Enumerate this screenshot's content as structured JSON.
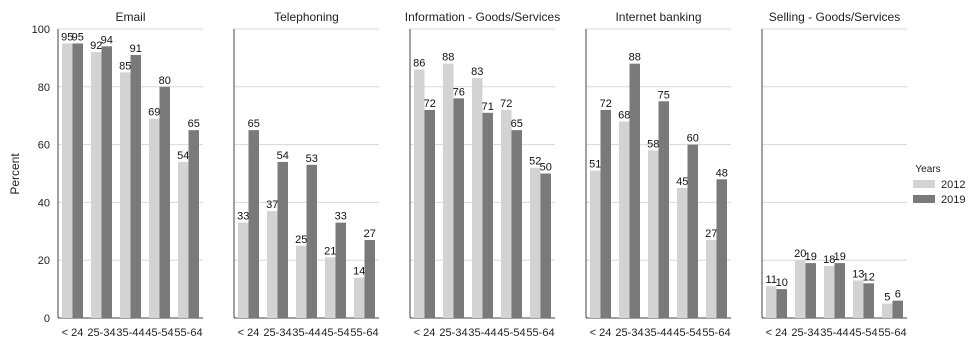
{
  "chart_data": {
    "type": "bar",
    "ylabel": "Percent",
    "ylim": [
      0,
      100
    ],
    "yticks": [
      0,
      20,
      40,
      60,
      80,
      100
    ],
    "grid": true,
    "legend": {
      "title": "Years",
      "placement": "right",
      "entries": [
        {
          "name": "2012",
          "color": "#d3d3d3"
        },
        {
          "name": "2019",
          "color": "#7a7a7a"
        }
      ]
    },
    "categories": [
      "< 24",
      "25-34",
      "35-44",
      "45-54",
      "55-64"
    ],
    "panels": [
      {
        "title": "Email",
        "series": [
          {
            "name": "2012",
            "values": [
              95,
              92,
              85,
              69,
              54
            ]
          },
          {
            "name": "2019",
            "values": [
              95,
              94,
              91,
              80,
              65
            ]
          }
        ]
      },
      {
        "title": "Telephoning",
        "series": [
          {
            "name": "2012",
            "values": [
              33,
              37,
              25,
              21,
              14
            ]
          },
          {
            "name": "2019",
            "values": [
              65,
              54,
              53,
              33,
              27
            ]
          }
        ]
      },
      {
        "title": "Information - Goods/Services",
        "series": [
          {
            "name": "2012",
            "values": [
              86,
              88,
              83,
              72,
              52
            ]
          },
          {
            "name": "2019",
            "values": [
              72,
              76,
              71,
              65,
              50
            ]
          }
        ]
      },
      {
        "title": "Internet banking",
        "series": [
          {
            "name": "2012",
            "values": [
              51,
              68,
              58,
              45,
              27
            ]
          },
          {
            "name": "2019",
            "values": [
              72,
              88,
              75,
              60,
              48
            ]
          }
        ]
      },
      {
        "title": "Selling - Goods/Services",
        "series": [
          {
            "name": "2012",
            "values": [
              11,
              20,
              18,
              13,
              5
            ]
          },
          {
            "name": "2019",
            "values": [
              10,
              19,
              19,
              12,
              6
            ]
          }
        ]
      }
    ]
  }
}
